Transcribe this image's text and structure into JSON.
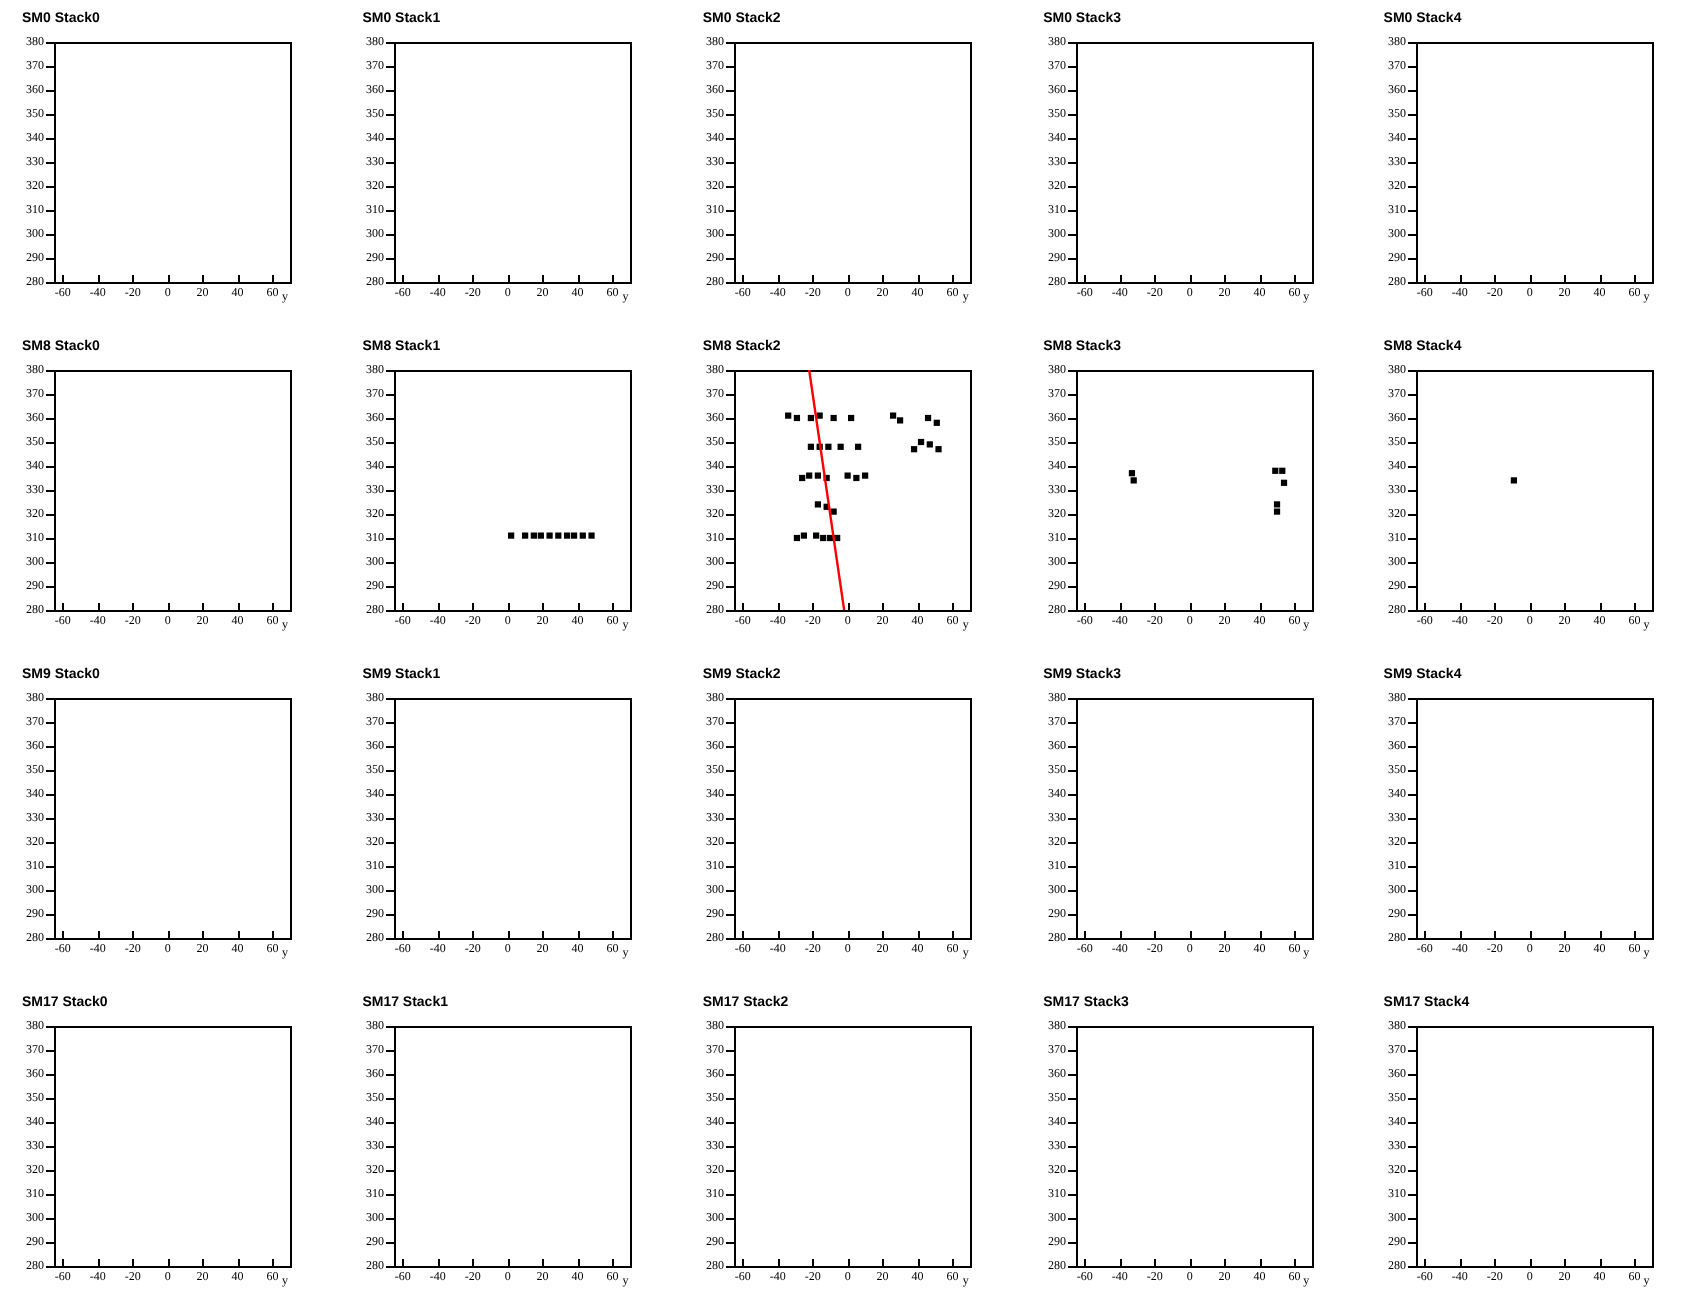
{
  "chart_data": [
    {
      "type": "scatter",
      "title": "SM0 Stack0",
      "xlabel": "y",
      "xlim": [
        -65,
        70
      ],
      "xticks": [
        -60,
        -40,
        -20,
        0,
        20,
        40,
        60
      ],
      "ylim": [
        280,
        380
      ],
      "yticks": [
        280,
        290,
        300,
        310,
        320,
        330,
        340,
        350,
        360,
        370,
        380
      ]
    },
    {
      "type": "scatter",
      "title": "SM0 Stack1",
      "xlabel": "y",
      "xlim": [
        -65,
        70
      ],
      "xticks": [
        -60,
        -40,
        -20,
        0,
        20,
        40,
        60
      ],
      "ylim": [
        280,
        380
      ],
      "yticks": [
        280,
        290,
        300,
        310,
        320,
        330,
        340,
        350,
        360,
        370,
        380
      ]
    },
    {
      "type": "scatter",
      "title": "SM0 Stack2",
      "xlabel": "y",
      "xlim": [
        -65,
        70
      ],
      "xticks": [
        -60,
        -40,
        -20,
        0,
        20,
        40,
        60
      ],
      "ylim": [
        280,
        380
      ],
      "yticks": [
        280,
        290,
        300,
        310,
        320,
        330,
        340,
        350,
        360,
        370,
        380
      ]
    },
    {
      "type": "scatter",
      "title": "SM0 Stack3",
      "xlabel": "y",
      "xlim": [
        -65,
        70
      ],
      "xticks": [
        -60,
        -40,
        -20,
        0,
        20,
        40,
        60
      ],
      "ylim": [
        280,
        380
      ],
      "yticks": [
        280,
        290,
        300,
        310,
        320,
        330,
        340,
        350,
        360,
        370,
        380
      ]
    },
    {
      "type": "scatter",
      "title": "SM0 Stack4",
      "xlabel": "y",
      "xlim": [
        -65,
        70
      ],
      "xticks": [
        -60,
        -40,
        -20,
        0,
        20,
        40,
        60
      ],
      "ylim": [
        280,
        380
      ],
      "yticks": [
        280,
        290,
        300,
        310,
        320,
        330,
        340,
        350,
        360,
        370,
        380
      ]
    },
    {
      "type": "scatter",
      "title": "SM8 Stack0",
      "xlabel": "y",
      "xlim": [
        -65,
        70
      ],
      "xticks": [
        -60,
        -40,
        -20,
        0,
        20,
        40,
        60
      ],
      "ylim": [
        280,
        380
      ],
      "yticks": [
        280,
        290,
        300,
        310,
        320,
        330,
        340,
        350,
        360,
        370,
        380
      ]
    },
    {
      "type": "scatter",
      "title": "SM8 Stack1",
      "xlabel": "y",
      "xlim": [
        -65,
        70
      ],
      "xticks": [
        -60,
        -40,
        -20,
        0,
        20,
        40,
        60
      ],
      "ylim": [
        280,
        380
      ],
      "yticks": [
        280,
        290,
        300,
        310,
        320,
        330,
        340,
        350,
        360,
        370,
        380
      ],
      "series": [
        {
          "color": "#000000",
          "marker": "square",
          "x": [
            2,
            10,
            15,
            19,
            24,
            29,
            34,
            38,
            43,
            48
          ],
          "values": [
            311,
            311,
            311,
            311,
            311,
            311,
            311,
            311,
            311,
            311
          ]
        }
      ]
    },
    {
      "type": "scatter",
      "title": "SM8 Stack2",
      "xlabel": "y",
      "xlim": [
        -65,
        70
      ],
      "xticks": [
        -60,
        -40,
        -20,
        0,
        20,
        40,
        60
      ],
      "ylim": [
        280,
        380
      ],
      "yticks": [
        280,
        290,
        300,
        310,
        320,
        330,
        340,
        350,
        360,
        370,
        380
      ],
      "series": [
        {
          "color": "#000000",
          "marker": "square",
          "x": [
            -34,
            -29,
            -21,
            -16,
            -8,
            2,
            26,
            30,
            46,
            51,
            -21,
            -16,
            -11,
            -4,
            6,
            38,
            42,
            47,
            52,
            -26,
            -22,
            -17,
            -12,
            0,
            5,
            10,
            -17,
            -12,
            -8,
            -29,
            -25,
            -18,
            -14,
            -10,
            -6
          ],
          "values": [
            361,
            360,
            360,
            361,
            360,
            360,
            361,
            359,
            360,
            358,
            348,
            348,
            348,
            348,
            348,
            347,
            350,
            349,
            347,
            335,
            336,
            336,
            335,
            336,
            335,
            336,
            324,
            323,
            321,
            310,
            311,
            311,
            310,
            310,
            310
          ]
        },
        {
          "type": "line",
          "color": "#ff0000",
          "x": [
            -22,
            -2
          ],
          "values": [
            380,
            280
          ]
        }
      ]
    },
    {
      "type": "scatter",
      "title": "SM8 Stack3",
      "xlabel": "y",
      "xlim": [
        -65,
        70
      ],
      "xticks": [
        -60,
        -40,
        -20,
        0,
        20,
        40,
        60
      ],
      "ylim": [
        280,
        380
      ],
      "yticks": [
        280,
        290,
        300,
        310,
        320,
        330,
        340,
        350,
        360,
        370,
        380
      ],
      "series": [
        {
          "color": "#000000",
          "marker": "square",
          "x": [
            -33,
            -32,
            49,
            53,
            54,
            50,
            50
          ],
          "values": [
            337,
            334,
            338,
            338,
            333,
            324,
            321
          ]
        }
      ]
    },
    {
      "type": "scatter",
      "title": "SM8 Stack4",
      "xlabel": "y",
      "xlim": [
        -65,
        70
      ],
      "xticks": [
        -60,
        -40,
        -20,
        0,
        20,
        40,
        60
      ],
      "ylim": [
        280,
        380
      ],
      "yticks": [
        280,
        290,
        300,
        310,
        320,
        330,
        340,
        350,
        360,
        370,
        380
      ],
      "series": [
        {
          "color": "#000000",
          "marker": "square",
          "x": [
            -9
          ],
          "values": [
            334
          ]
        }
      ]
    },
    {
      "type": "scatter",
      "title": "SM9 Stack0",
      "xlabel": "y",
      "xlim": [
        -65,
        70
      ],
      "xticks": [
        -60,
        -40,
        -20,
        0,
        20,
        40,
        60
      ],
      "ylim": [
        280,
        380
      ],
      "yticks": [
        280,
        290,
        300,
        310,
        320,
        330,
        340,
        350,
        360,
        370,
        380
      ]
    },
    {
      "type": "scatter",
      "title": "SM9 Stack1",
      "xlabel": "y",
      "xlim": [
        -65,
        70
      ],
      "xticks": [
        -60,
        -40,
        -20,
        0,
        20,
        40,
        60
      ],
      "ylim": [
        280,
        380
      ],
      "yticks": [
        280,
        290,
        300,
        310,
        320,
        330,
        340,
        350,
        360,
        370,
        380
      ]
    },
    {
      "type": "scatter",
      "title": "SM9 Stack2",
      "xlabel": "y",
      "xlim": [
        -65,
        70
      ],
      "xticks": [
        -60,
        -40,
        -20,
        0,
        20,
        40,
        60
      ],
      "ylim": [
        280,
        380
      ],
      "yticks": [
        280,
        290,
        300,
        310,
        320,
        330,
        340,
        350,
        360,
        370,
        380
      ]
    },
    {
      "type": "scatter",
      "title": "SM9 Stack3",
      "xlabel": "y",
      "xlim": [
        -65,
        70
      ],
      "xticks": [
        -60,
        -40,
        -20,
        0,
        20,
        40,
        60
      ],
      "ylim": [
        280,
        380
      ],
      "yticks": [
        280,
        290,
        300,
        310,
        320,
        330,
        340,
        350,
        360,
        370,
        380
      ]
    },
    {
      "type": "scatter",
      "title": "SM9 Stack4",
      "xlabel": "y",
      "xlim": [
        -65,
        70
      ],
      "xticks": [
        -60,
        -40,
        -20,
        0,
        20,
        40,
        60
      ],
      "ylim": [
        280,
        380
      ],
      "yticks": [
        280,
        290,
        300,
        310,
        320,
        330,
        340,
        350,
        360,
        370,
        380
      ]
    },
    {
      "type": "scatter",
      "title": "SM17 Stack0",
      "xlabel": "y",
      "xlim": [
        -65,
        70
      ],
      "xticks": [
        -60,
        -40,
        -20,
        0,
        20,
        40,
        60
      ],
      "ylim": [
        280,
        380
      ],
      "yticks": [
        280,
        290,
        300,
        310,
        320,
        330,
        340,
        350,
        360,
        370,
        380
      ]
    },
    {
      "type": "scatter",
      "title": "SM17 Stack1",
      "xlabel": "y",
      "xlim": [
        -65,
        70
      ],
      "xticks": [
        -60,
        -40,
        -20,
        0,
        20,
        40,
        60
      ],
      "ylim": [
        280,
        380
      ],
      "yticks": [
        280,
        290,
        300,
        310,
        320,
        330,
        340,
        350,
        360,
        370,
        380
      ]
    },
    {
      "type": "scatter",
      "title": "SM17 Stack2",
      "xlabel": "y",
      "xlim": [
        -65,
        70
      ],
      "xticks": [
        -60,
        -40,
        -20,
        0,
        20,
        40,
        60
      ],
      "ylim": [
        280,
        380
      ],
      "yticks": [
        280,
        290,
        300,
        310,
        320,
        330,
        340,
        350,
        360,
        370,
        380
      ]
    },
    {
      "type": "scatter",
      "title": "SM17 Stack3",
      "xlabel": "y",
      "xlim": [
        -65,
        70
      ],
      "xticks": [
        -60,
        -40,
        -20,
        0,
        20,
        40,
        60
      ],
      "ylim": [
        280,
        380
      ],
      "yticks": [
        280,
        290,
        300,
        310,
        320,
        330,
        340,
        350,
        360,
        370,
        380
      ]
    },
    {
      "type": "scatter",
      "title": "SM17 Stack4",
      "xlabel": "y",
      "xlim": [
        -65,
        70
      ],
      "xticks": [
        -60,
        -40,
        -20,
        0,
        20,
        40,
        60
      ],
      "ylim": [
        280,
        380
      ],
      "yticks": [
        280,
        290,
        300,
        310,
        320,
        330,
        340,
        350,
        360,
        370,
        380
      ]
    }
  ]
}
